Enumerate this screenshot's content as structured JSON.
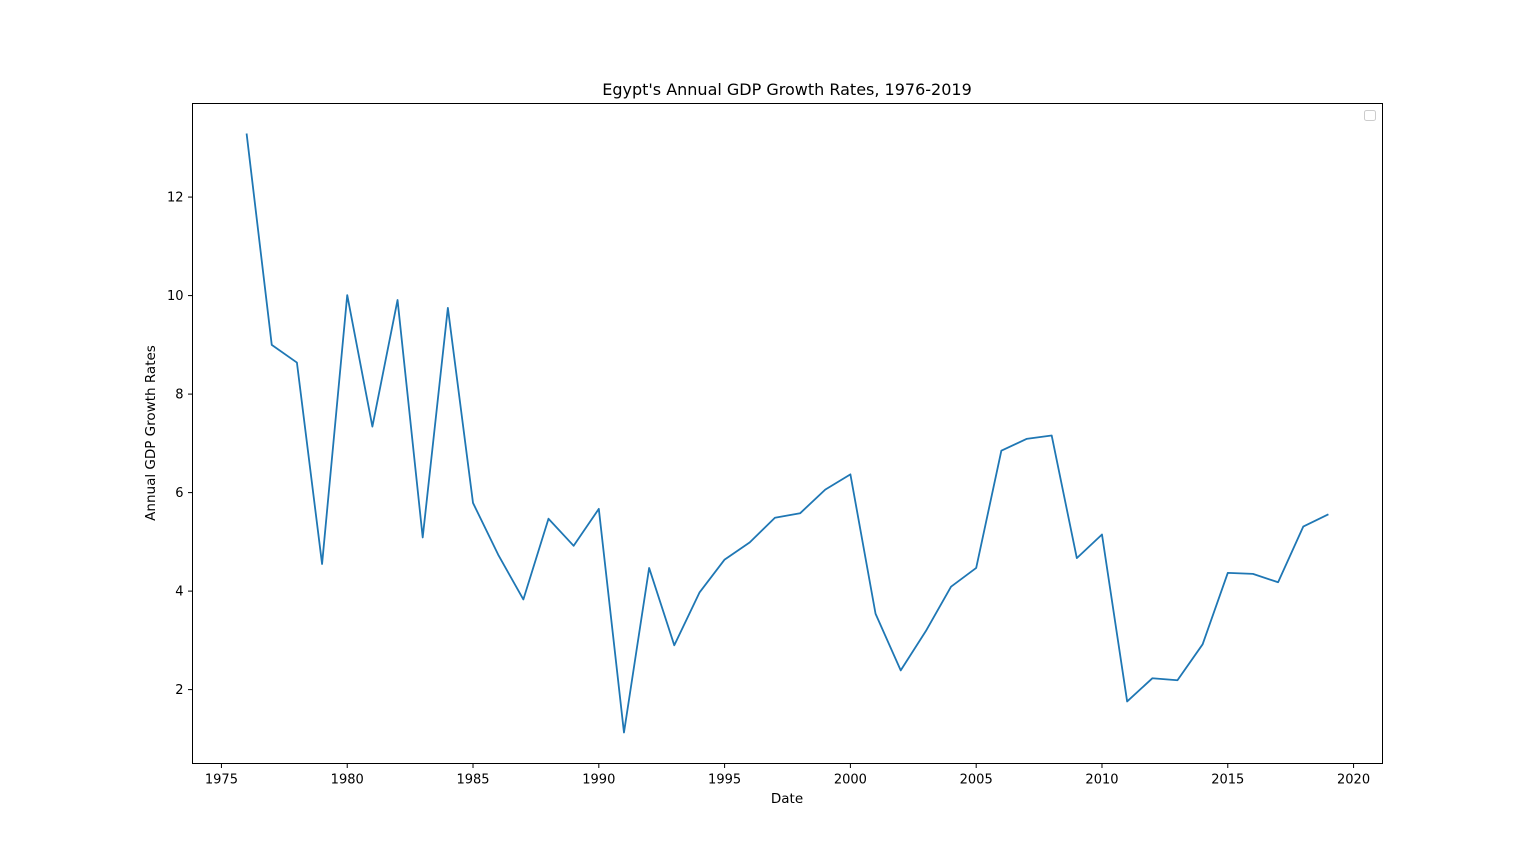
{
  "chart_data": {
    "type": "line",
    "title": "Egypt's Annual GDP Growth Rates, 1976-2019",
    "xlabel": "Date",
    "ylabel": "Annual GDP Growth Rates",
    "xlim": [
      1973.85,
      2021.15
    ],
    "ylim": [
      0.5,
      13.9
    ],
    "x_ticks": [
      1975,
      1980,
      1985,
      1990,
      1995,
      2000,
      2005,
      2010,
      2015,
      2020
    ],
    "y_ticks": [
      2,
      4,
      6,
      8,
      10,
      12
    ],
    "grid": false,
    "legend": "top-right (empty)",
    "series": [
      {
        "color": "#1f77b4",
        "x": [
          1976,
          1977,
          1978,
          1979,
          1980,
          1981,
          1982,
          1983,
          1984,
          1985,
          1986,
          1987,
          1988,
          1989,
          1990,
          1991,
          1992,
          1993,
          1994,
          1995,
          1996,
          1997,
          1998,
          1999,
          2000,
          2001,
          2002,
          2003,
          2004,
          2005,
          2006,
          2007,
          2008,
          2009,
          2010,
          2011,
          2012,
          2013,
          2014,
          2015,
          2016,
          2017,
          2018,
          2019
        ],
        "values": [
          13.29,
          9.0,
          8.64,
          4.55,
          10.01,
          7.34,
          9.91,
          5.09,
          9.75,
          5.79,
          4.74,
          3.83,
          5.47,
          4.92,
          5.67,
          1.13,
          4.47,
          2.9,
          3.97,
          4.64,
          4.99,
          5.49,
          5.58,
          6.06,
          6.37,
          3.54,
          2.39,
          3.19,
          4.09,
          4.47,
          6.85,
          7.09,
          7.16,
          4.67,
          5.15,
          1.76,
          2.23,
          2.19,
          2.92,
          4.37,
          4.35,
          4.18,
          5.31,
          5.56
        ]
      }
    ]
  }
}
